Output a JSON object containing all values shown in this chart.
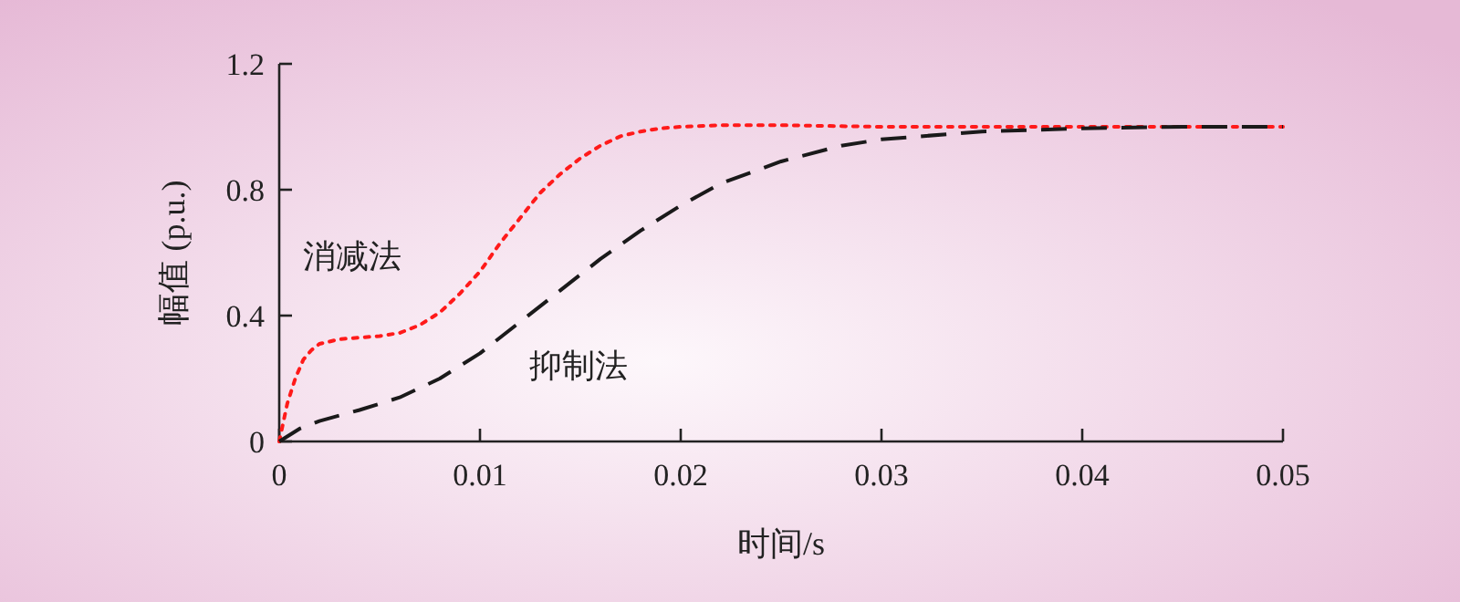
{
  "chart_data": {
    "type": "line",
    "xlabel": "时间/s",
    "ylabel": "幅值 (p.u.)",
    "xlim": [
      0,
      0.05
    ],
    "ylim": [
      0,
      1.2
    ],
    "xticks": [
      0,
      0.01,
      0.02,
      0.03,
      0.04,
      0.05
    ],
    "yticks": [
      0,
      0.4,
      0.8,
      1.2
    ],
    "grid": false,
    "series": [
      {
        "name": "消减法",
        "color": "#ff1a1a",
        "line_style": "dotted",
        "x": [
          0,
          0.0004,
          0.0008,
          0.0012,
          0.0016,
          0.002,
          0.003,
          0.004,
          0.005,
          0.006,
          0.007,
          0.008,
          0.009,
          0.01,
          0.011,
          0.012,
          0.013,
          0.014,
          0.015,
          0.016,
          0.017,
          0.018,
          0.019,
          0.02,
          0.022,
          0.025,
          0.03,
          0.035,
          0.04,
          0.045,
          0.05
        ],
        "values": [
          0,
          0.12,
          0.2,
          0.26,
          0.29,
          0.31,
          0.325,
          0.33,
          0.335,
          0.345,
          0.37,
          0.41,
          0.47,
          0.54,
          0.63,
          0.71,
          0.79,
          0.85,
          0.9,
          0.94,
          0.97,
          0.985,
          0.995,
          1.0,
          1.005,
          1.005,
          1.0,
          1.0,
          1.0,
          1.0,
          1.0
        ]
      },
      {
        "name": "抑制法",
        "color": "#1a1a1a",
        "line_style": "dashed",
        "x": [
          0,
          0.001,
          0.002,
          0.004,
          0.006,
          0.008,
          0.01,
          0.012,
          0.014,
          0.016,
          0.018,
          0.02,
          0.022,
          0.025,
          0.028,
          0.03,
          0.035,
          0.04,
          0.045,
          0.05
        ],
        "values": [
          0,
          0.04,
          0.065,
          0.1,
          0.14,
          0.2,
          0.28,
          0.38,
          0.48,
          0.58,
          0.67,
          0.75,
          0.82,
          0.89,
          0.94,
          0.96,
          0.985,
          0.995,
          1.0,
          1.0
        ]
      }
    ]
  }
}
